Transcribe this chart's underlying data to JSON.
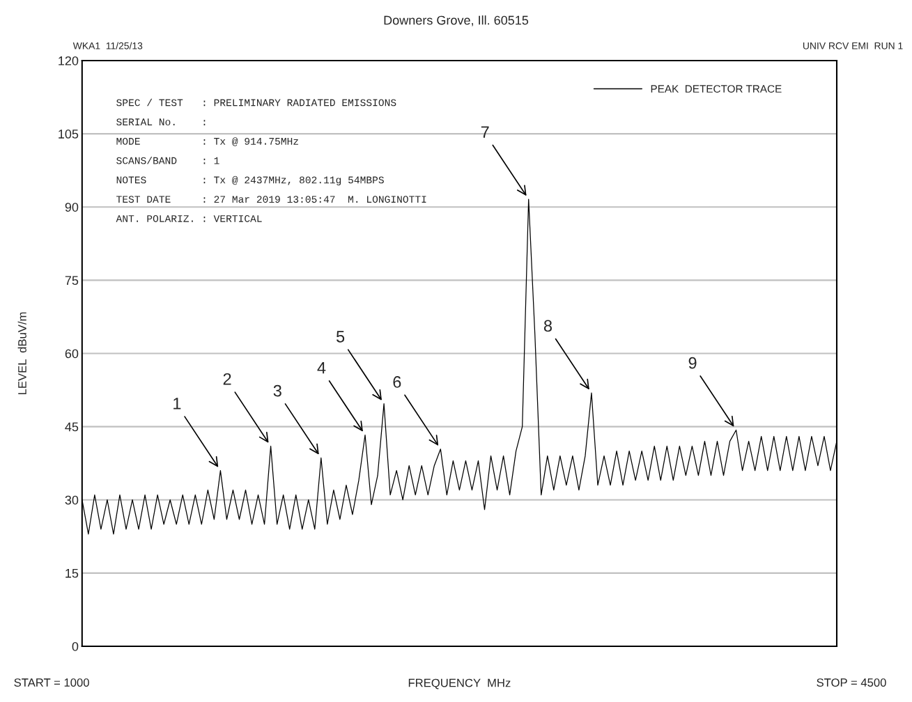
{
  "chart_data": {
    "type": "line",
    "subtitle": "Downers Grove, Ill. 60515",
    "xlabel": "FREQUENCY  MHz",
    "ylabel": "LEVEL  dBuV/m",
    "categories": [
      null,
      null,
      null,
      null,
      null,
      null,
      null,
      null,
      null,
      null,
      null,
      null,
      null,
      null,
      null,
      null,
      null,
      null,
      null,
      null,
      null,
      null,
      null,
      null,
      null,
      null,
      null,
      null,
      null,
      null,
      null,
      null,
      null,
      null,
      null,
      null,
      null,
      null,
      null,
      null,
      null,
      null,
      null,
      null,
      null,
      null,
      null,
      null,
      null,
      null,
      null,
      null,
      null,
      null,
      null,
      null,
      null,
      null,
      null,
      null,
      null,
      null,
      null,
      null,
      null,
      null,
      null,
      null,
      null,
      null,
      null,
      null,
      null,
      null,
      null,
      null,
      null,
      null,
      null,
      null,
      null,
      null,
      null,
      null,
      null,
      null,
      null,
      null,
      null,
      null,
      null,
      null,
      null,
      null,
      null,
      null,
      null,
      null,
      null,
      null,
      null,
      null,
      null,
      null,
      null,
      null,
      null,
      null,
      null,
      null,
      null,
      null,
      null,
      null,
      null,
      null,
      null,
      null,
      null,
      null,
      null
    ],
    "ylim": [
      0,
      120
    ],
    "yticks": [
      0,
      15,
      30,
      45,
      60,
      75,
      90,
      105,
      120
    ],
    "grid": "y",
    "legend": "top right",
    "tick_labels": "y",
    "series": [
      {
        "name": "PEAK  DETECTOR TRACE",
        "color": "#000000",
        "values": [
          30,
          23,
          31,
          24,
          30,
          23,
          31,
          24,
          30,
          24,
          31,
          24,
          31,
          25,
          30,
          25,
          31,
          25,
          31,
          25,
          32,
          26,
          36,
          26,
          32,
          26,
          32,
          25,
          31,
          25,
          41,
          25,
          31,
          24,
          31,
          24,
          30,
          24,
          38.6,
          25,
          32,
          26,
          33,
          27,
          34,
          43.3,
          29,
          35,
          49.7,
          31,
          36,
          30,
          37,
          31,
          37,
          31,
          37,
          40.4,
          31,
          38,
          32,
          38,
          32,
          38,
          28,
          39,
          32,
          39,
          31,
          40,
          45,
          91.6,
          64,
          31,
          39,
          32,
          39,
          33,
          39,
          32,
          39,
          51.9,
          33,
          39,
          33,
          40,
          33,
          40,
          34,
          40,
          34,
          41,
          34,
          41,
          34,
          41,
          35,
          41,
          35,
          42,
          35,
          42,
          35,
          42,
          44.3,
          36,
          42,
          36,
          43,
          36,
          43,
          36,
          43,
          36,
          43,
          36,
          43,
          37,
          43,
          36,
          42
        ]
      }
    ],
    "annotations": [
      "WKA1  11/25/13",
      "UNIV RCV EMI  RUN 1",
      "START = 1000",
      "STOP = 4500",
      "SPEC / TEST   : PRELIMINARY RADIATED EMISSIONS",
      "SERIAL No.    :",
      "MODE          : Tx @ 914.75MHz",
      "SCANS/BAND    : 1",
      "NOTES         : Tx @ 2437MHz, 802.11g 54MBPS",
      "TEST DATE     : 27 Mar 2019 13:05:47  M. LONGINOTTI",
      "ANT. POLARIZ. : VERTICAL",
      "1",
      "2",
      "3",
      "4",
      "5",
      "6",
      "7",
      "8",
      "9"
    ]
  }
}
